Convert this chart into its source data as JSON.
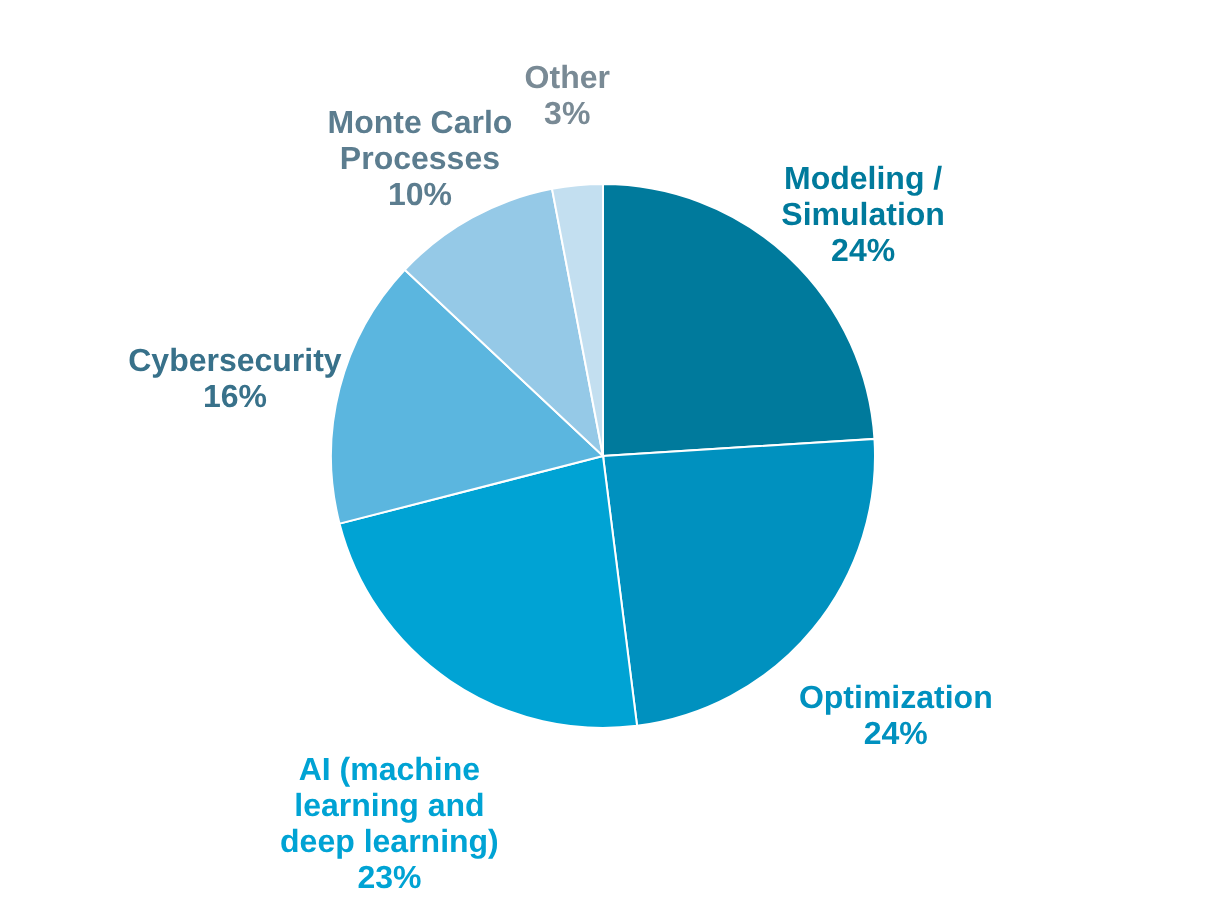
{
  "chart_data": {
    "type": "pie",
    "categories": [
      "Modeling / Simulation",
      "Optimization",
      "AI (machine learning and deep learning)",
      "Cybersecurity",
      "Monte Carlo Processes",
      "Other"
    ],
    "values": [
      24,
      24,
      23,
      16,
      10,
      3
    ],
    "value_labels": [
      "24%",
      "24%",
      "23%",
      "16%",
      "10%",
      "3%"
    ],
    "colors": [
      "#007a9c",
      "#0091bf",
      "#00a3d4",
      "#5bb6df",
      "#95c9e7",
      "#c3dff0"
    ]
  }
}
